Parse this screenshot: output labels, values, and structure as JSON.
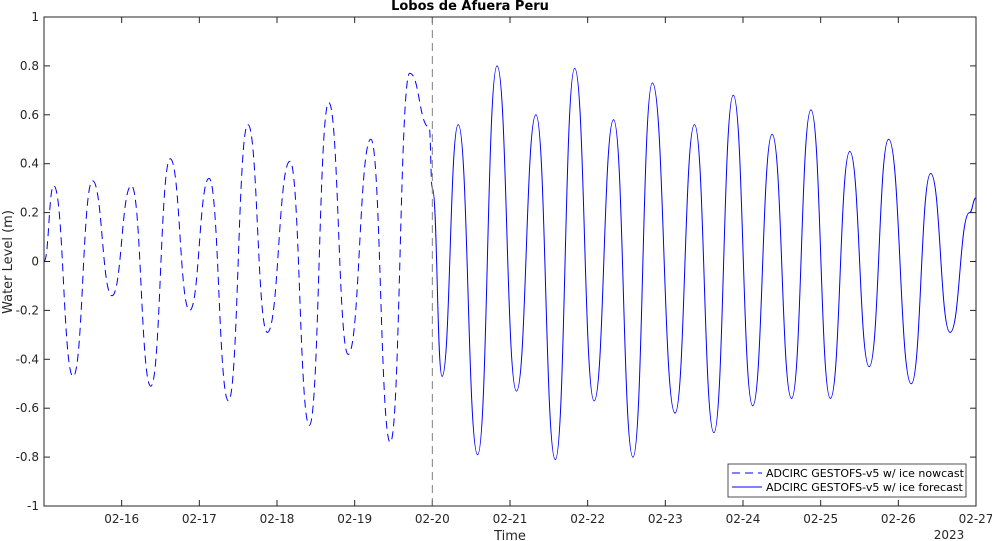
{
  "chart_data": {
    "type": "line",
    "title": "Lobos de Afuera Peru",
    "xlabel": "Time",
    "ylabel": "Water Level (m)",
    "year_label": "2023",
    "xlim": [
      "2023-02-15 00:00",
      "2023-02-27 00:00"
    ],
    "ylim": [
      -1,
      1
    ],
    "yticks": [
      -1,
      -0.8,
      -0.6,
      -0.4,
      -0.2,
      0,
      0.2,
      0.4,
      0.6,
      0.8,
      1
    ],
    "ytick_labels": [
      "-1",
      "-0.8",
      "-0.6",
      "-0.4",
      "-0.2",
      "0",
      "0.2",
      "0.4",
      "0.6",
      "0.8",
      "1"
    ],
    "xticks": [
      "2023-02-16",
      "2023-02-17",
      "2023-02-18",
      "2023-02-19",
      "2023-02-20",
      "2023-02-21",
      "2023-02-22",
      "2023-02-23",
      "2023-02-24",
      "2023-02-25",
      "2023-02-26",
      "2023-02-27"
    ],
    "xtick_labels": [
      "02-16",
      "02-17",
      "02-18",
      "02-19",
      "02-20",
      "02-21",
      "02-22",
      "02-23",
      "02-24",
      "02-25",
      "02-26",
      "02-27"
    ],
    "nowcast_forecast_divider": "2023-02-20 00:00",
    "legend_position": "bottom-right",
    "series": [
      {
        "name": "ADCIRC GESTOFS-v5 w/ ice nowcast",
        "style": "dashed",
        "color": "#0000ff",
        "x": [
          "2023-02-15 00:00",
          "2023-02-15 03:00",
          "2023-02-15 09:00",
          "2023-02-15 15:00",
          "2023-02-15 21:00",
          "2023-02-16 03:00",
          "2023-02-16 09:00",
          "2023-02-16 15:00",
          "2023-02-16 21:00",
          "2023-02-17 03:00",
          "2023-02-17 09:00",
          "2023-02-17 15:00",
          "2023-02-17 21:00",
          "2023-02-18 04:00",
          "2023-02-18 10:00",
          "2023-02-18 16:00",
          "2023-02-18 22:00",
          "2023-02-19 05:00",
          "2023-02-19 11:00",
          "2023-02-19 17:00",
          "2023-02-19 23:00",
          "2023-02-20 00:00"
        ],
        "y": [
          0.0,
          0.31,
          -0.47,
          0.33,
          -0.14,
          0.31,
          -0.51,
          0.42,
          -0.2,
          0.34,
          -0.57,
          0.56,
          -0.29,
          0.41,
          -0.67,
          0.65,
          -0.38,
          0.5,
          -0.74,
          0.77,
          0.55,
          0.3
        ]
      },
      {
        "name": "ADCIRC GESTOFS-v5 w/ ice forecast",
        "style": "solid",
        "color": "#0000ff",
        "x": [
          "2023-02-20 00:00",
          "2023-02-20 03:00",
          "2023-02-20 08:00",
          "2023-02-20 14:00",
          "2023-02-20 20:00",
          "2023-02-21 02:00",
          "2023-02-21 08:00",
          "2023-02-21 14:00",
          "2023-02-21 20:00",
          "2023-02-22 02:00",
          "2023-02-22 08:00",
          "2023-02-22 14:00",
          "2023-02-22 20:00",
          "2023-02-23 03:00",
          "2023-02-23 09:00",
          "2023-02-23 15:00",
          "2023-02-23 21:00",
          "2023-02-24 03:00",
          "2023-02-24 09:00",
          "2023-02-24 15:00",
          "2023-02-24 21:00",
          "2023-02-25 03:00",
          "2023-02-25 09:00",
          "2023-02-25 15:00",
          "2023-02-25 21:00",
          "2023-02-26 04:00",
          "2023-02-26 10:00",
          "2023-02-26 16:00",
          "2023-02-26 22:00",
          "2023-02-27 00:00"
        ],
        "y": [
          0.3,
          -0.47,
          0.56,
          -0.79,
          0.8,
          -0.53,
          0.6,
          -0.81,
          0.79,
          -0.57,
          0.58,
          -0.8,
          0.73,
          -0.62,
          0.56,
          -0.7,
          0.68,
          -0.59,
          0.52,
          -0.56,
          0.62,
          -0.56,
          0.45,
          -0.43,
          0.5,
          -0.5,
          0.36,
          -0.29,
          0.2,
          0.26
        ]
      }
    ]
  }
}
